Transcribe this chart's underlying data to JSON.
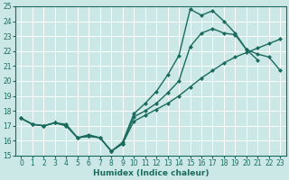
{
  "xlabel": "Humidex (Indice chaleur)",
  "bg_color": "#cce8e6",
  "line_color": "#1a6b5e",
  "grid_color": "#ffffff",
  "line1_x": [
    0,
    1,
    2,
    3,
    4,
    5,
    6,
    7,
    8,
    9,
    10,
    11,
    12,
    13,
    14,
    15,
    16,
    17,
    18,
    19,
    20,
    21
  ],
  "line1_y": [
    17.5,
    17.1,
    17.0,
    17.2,
    17.1,
    16.2,
    16.4,
    16.2,
    15.3,
    15.9,
    17.8,
    18.5,
    19.3,
    20.4,
    21.7,
    24.8,
    24.4,
    24.7,
    24.0,
    23.2,
    22.1,
    21.4
  ],
  "line2_x": [
    0,
    1,
    2,
    3,
    4,
    5,
    6,
    7,
    8,
    9,
    10,
    11,
    12,
    13,
    14,
    15,
    16,
    17,
    18,
    19,
    20,
    21,
    22,
    23
  ],
  "line2_y": [
    17.5,
    17.1,
    17.0,
    17.2,
    17.0,
    16.2,
    16.3,
    16.2,
    15.3,
    15.8,
    17.6,
    18.0,
    18.5,
    19.2,
    20.0,
    22.3,
    23.2,
    23.5,
    23.2,
    23.1,
    22.1,
    21.8,
    21.6,
    20.7
  ],
  "line3_x": [
    0,
    1,
    2,
    3,
    4,
    5,
    6,
    7,
    8,
    9,
    10,
    11,
    12,
    13,
    14,
    15,
    16,
    17,
    18,
    19,
    20,
    21,
    22,
    23
  ],
  "line3_y": [
    17.5,
    17.1,
    17.0,
    17.2,
    17.0,
    16.2,
    16.3,
    16.2,
    15.3,
    15.8,
    17.3,
    17.7,
    18.1,
    18.5,
    19.0,
    19.6,
    20.2,
    20.7,
    21.2,
    21.6,
    21.9,
    22.2,
    22.5,
    22.8
  ],
  "marker_size": 2.5,
  "linewidth": 1.0,
  "xlim": [
    -0.5,
    23.5
  ],
  "ylim": [
    15,
    25
  ],
  "yticks": [
    15,
    16,
    17,
    18,
    19,
    20,
    21,
    22,
    23,
    24,
    25
  ],
  "xticks": [
    0,
    1,
    2,
    3,
    4,
    5,
    6,
    7,
    8,
    9,
    10,
    11,
    12,
    13,
    14,
    15,
    16,
    17,
    18,
    19,
    20,
    21,
    22,
    23
  ],
  "tick_fontsize": 5.5,
  "xlabel_fontsize": 6.5
}
